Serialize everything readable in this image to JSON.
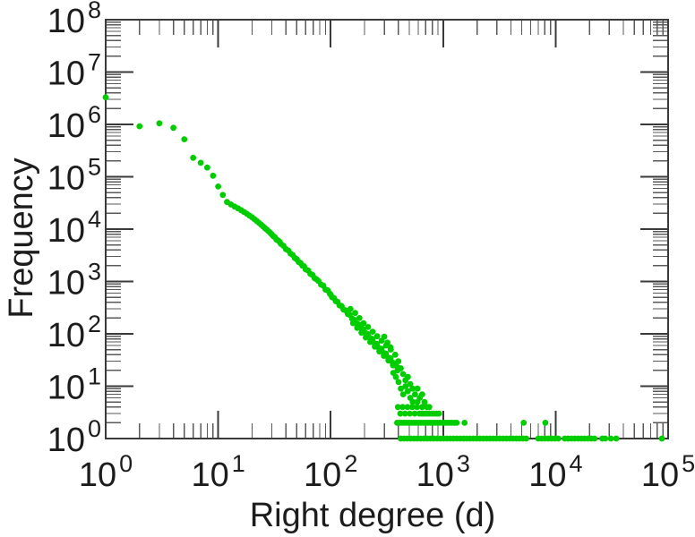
{
  "figure": {
    "background_color": "#ffffff",
    "axis_color": "#3a3a3a",
    "minor_tick_color": "#5a5a5a",
    "text_color": "#1c1c1c"
  },
  "chart_data": {
    "type": "scatter",
    "title": "",
    "xlabel": "Right degree (d)",
    "ylabel": "Frequency",
    "xscale": "log",
    "yscale": "log",
    "xlim": [
      1,
      100000
    ],
    "ylim": [
      1,
      100000000
    ],
    "x_tick_exponents": [
      0,
      1,
      2,
      3,
      4,
      5
    ],
    "y_tick_exponents": [
      0,
      1,
      2,
      3,
      4,
      5,
      6,
      7,
      8
    ],
    "tick_base": "10",
    "grid": false,
    "legend": null,
    "marker": {
      "shape": "circle",
      "color": "#00cd00",
      "radius_px": 3.4
    },
    "points": [
      [
        1,
        3300000
      ],
      [
        2,
        920000
      ],
      [
        3,
        1050000
      ],
      [
        4,
        860000
      ],
      [
        5,
        520000
      ],
      [
        6,
        230000
      ],
      [
        7,
        185000
      ],
      [
        8,
        150000
      ],
      [
        9,
        105000
      ],
      [
        10,
        65000
      ],
      [
        11,
        45000
      ],
      [
        12,
        33000
      ],
      [
        13,
        29500
      ],
      [
        14,
        27000
      ],
      [
        15,
        25000
      ],
      [
        16,
        23000
      ],
      [
        17,
        21200
      ],
      [
        18,
        19600
      ],
      [
        19,
        18100
      ],
      [
        20,
        16800
      ],
      [
        21,
        15500
      ],
      [
        22,
        14300
      ],
      [
        23,
        13200
      ],
      [
        24,
        12200
      ],
      [
        25,
        11300
      ],
      [
        26,
        10500
      ],
      [
        27,
        9800
      ],
      [
        28,
        9100
      ],
      [
        29,
        8500
      ],
      [
        30,
        7900
      ],
      [
        31,
        7300
      ],
      [
        32,
        7000
      ],
      [
        33,
        6300
      ],
      [
        34,
        6100
      ],
      [
        35,
        5800
      ],
      [
        36,
        5250
      ],
      [
        38,
        4800
      ],
      [
        40,
        4150
      ],
      [
        42,
        3900
      ],
      [
        44,
        3400
      ],
      [
        46,
        3200
      ],
      [
        48,
        2800
      ],
      [
        50,
        2650
      ],
      [
        52,
        2350
      ],
      [
        54,
        2250
      ],
      [
        56,
        2000
      ],
      [
        58,
        1950
      ],
      [
        60,
        1700
      ],
      [
        63,
        1620
      ],
      [
        66,
        1400
      ],
      [
        69,
        1330
      ],
      [
        72,
        1150
      ],
      [
        75,
        1100
      ],
      [
        78,
        1020
      ],
      [
        82,
        870
      ],
      [
        86,
        830
      ],
      [
        90,
        700
      ],
      [
        94,
        680
      ],
      [
        98,
        590
      ],
      [
        100,
        560
      ],
      [
        103,
        500
      ],
      [
        107,
        480
      ],
      [
        111,
        420
      ],
      [
        115,
        410
      ],
      [
        120,
        350
      ],
      [
        125,
        340
      ],
      [
        130,
        290
      ],
      [
        136,
        280
      ],
      [
        142,
        240
      ],
      [
        148,
        230
      ],
      [
        155,
        195
      ],
      [
        162,
        185
      ],
      [
        170,
        158
      ],
      [
        178,
        150
      ],
      [
        186,
        128
      ],
      [
        195,
        122
      ],
      [
        204,
        103
      ],
      [
        214,
        99
      ],
      [
        224,
        83
      ],
      [
        235,
        80
      ],
      [
        246,
        66
      ],
      [
        258,
        64
      ],
      [
        270,
        53
      ],
      [
        283,
        52
      ],
      [
        296,
        43
      ],
      [
        310,
        42
      ],
      [
        325,
        35
      ],
      [
        341,
        34
      ],
      [
        357,
        28
      ],
      [
        374,
        27
      ],
      [
        392,
        23
      ],
      [
        150,
        300
      ],
      [
        158,
        160
      ],
      [
        165,
        250
      ],
      [
        172,
        130
      ],
      [
        180,
        200
      ],
      [
        188,
        105
      ],
      [
        196,
        160
      ],
      [
        205,
        85
      ],
      [
        215,
        135
      ],
      [
        225,
        70
      ],
      [
        236,
        110
      ],
      [
        247,
        57
      ],
      [
        259,
        90
      ],
      [
        271,
        46
      ],
      [
        284,
        74
      ],
      [
        297,
        38
      ],
      [
        311,
        60
      ],
      [
        326,
        31
      ],
      [
        342,
        50
      ],
      [
        358,
        25
      ],
      [
        375,
        40
      ],
      [
        393,
        20
      ],
      [
        300,
        88
      ],
      [
        320,
        68
      ],
      [
        340,
        55
      ],
      [
        361,
        18
      ],
      [
        380,
        15
      ],
      [
        400,
        30
      ],
      [
        401,
        12
      ],
      [
        420,
        22
      ],
      [
        421,
        9
      ],
      [
        440,
        17
      ],
      [
        441,
        7
      ],
      [
        462,
        13
      ],
      [
        463,
        10
      ],
      [
        485,
        8
      ],
      [
        486,
        15
      ],
      [
        510,
        6
      ],
      [
        509,
        11
      ],
      [
        535,
        9
      ],
      [
        536,
        5
      ],
      [
        562,
        7
      ],
      [
        590,
        5
      ],
      [
        591,
        9
      ],
      [
        620,
        6
      ],
      [
        650,
        4
      ],
      [
        651,
        7
      ],
      [
        683,
        5
      ],
      [
        717,
        4
      ],
      [
        753,
        4
      ],
      [
        790,
        3
      ],
      [
        830,
        3
      ],
      [
        872,
        3
      ],
      [
        916,
        3
      ],
      [
        396,
        4
      ],
      [
        416,
        3
      ],
      [
        437,
        4
      ],
      [
        459,
        3
      ],
      [
        482,
        4
      ],
      [
        506,
        3
      ],
      [
        531,
        4
      ],
      [
        558,
        3
      ],
      [
        586,
        4
      ],
      [
        615,
        3
      ],
      [
        646,
        3
      ],
      [
        678,
        3
      ],
      [
        712,
        3
      ],
      [
        748,
        3
      ],
      [
        390,
        2
      ],
      [
        410,
        2
      ],
      [
        430,
        2
      ],
      [
        451,
        2
      ],
      [
        473,
        2
      ],
      [
        497,
        2
      ],
      [
        522,
        2
      ],
      [
        548,
        2
      ],
      [
        575,
        2
      ],
      [
        604,
        2
      ],
      [
        634,
        2
      ],
      [
        666,
        2
      ],
      [
        699,
        2
      ],
      [
        734,
        2
      ],
      [
        771,
        2
      ],
      [
        810,
        2
      ],
      [
        850,
        2
      ],
      [
        893,
        2
      ],
      [
        938,
        2
      ],
      [
        985,
        2
      ],
      [
        1034,
        2
      ],
      [
        1086,
        2
      ],
      [
        1140,
        2
      ],
      [
        1197,
        2
      ],
      [
        1257,
        2
      ],
      [
        1320,
        2
      ],
      [
        1550,
        2
      ],
      [
        5200,
        2
      ],
      [
        8100,
        2
      ],
      [
        420,
        1
      ],
      [
        450,
        1
      ],
      [
        480,
        1
      ],
      [
        514,
        1
      ],
      [
        550,
        1
      ],
      [
        588,
        1
      ],
      [
        629,
        1
      ],
      [
        673,
        1
      ],
      [
        720,
        1
      ],
      [
        770,
        1
      ],
      [
        824,
        1
      ],
      [
        882,
        1
      ],
      [
        944,
        1
      ],
      [
        1010,
        1
      ],
      [
        1080,
        1
      ],
      [
        1156,
        1
      ],
      [
        1237,
        1
      ],
      [
        1323,
        1
      ],
      [
        1416,
        1
      ],
      [
        1515,
        1
      ],
      [
        1621,
        1
      ],
      [
        1734,
        1
      ],
      [
        1856,
        1
      ],
      [
        1986,
        1
      ],
      [
        2125,
        1
      ],
      [
        2273,
        1
      ],
      [
        2432,
        1
      ],
      [
        2602,
        1
      ],
      [
        2784,
        1
      ],
      [
        2979,
        1
      ],
      [
        3187,
        1
      ],
      [
        3410,
        1
      ],
      [
        3649,
        1
      ],
      [
        3904,
        1
      ],
      [
        4177,
        1
      ],
      [
        4469,
        1
      ],
      [
        4782,
        1
      ],
      [
        5117,
        1
      ],
      [
        5475,
        1
      ],
      [
        7020,
        1
      ],
      [
        7510,
        1
      ],
      [
        8040,
        1
      ],
      [
        8600,
        1
      ],
      [
        9200,
        1
      ],
      [
        9850,
        1
      ],
      [
        10540,
        1
      ],
      [
        12060,
        1
      ],
      [
        12900,
        1
      ],
      [
        13800,
        1
      ],
      [
        14770,
        1
      ],
      [
        15800,
        1
      ],
      [
        16910,
        1
      ],
      [
        18090,
        1
      ],
      [
        19360,
        1
      ],
      [
        20710,
        1
      ],
      [
        22160,
        1
      ],
      [
        26000,
        1
      ],
      [
        27600,
        1
      ],
      [
        31000,
        1
      ],
      [
        34500,
        1
      ],
      [
        88000,
        1
      ]
    ]
  }
}
